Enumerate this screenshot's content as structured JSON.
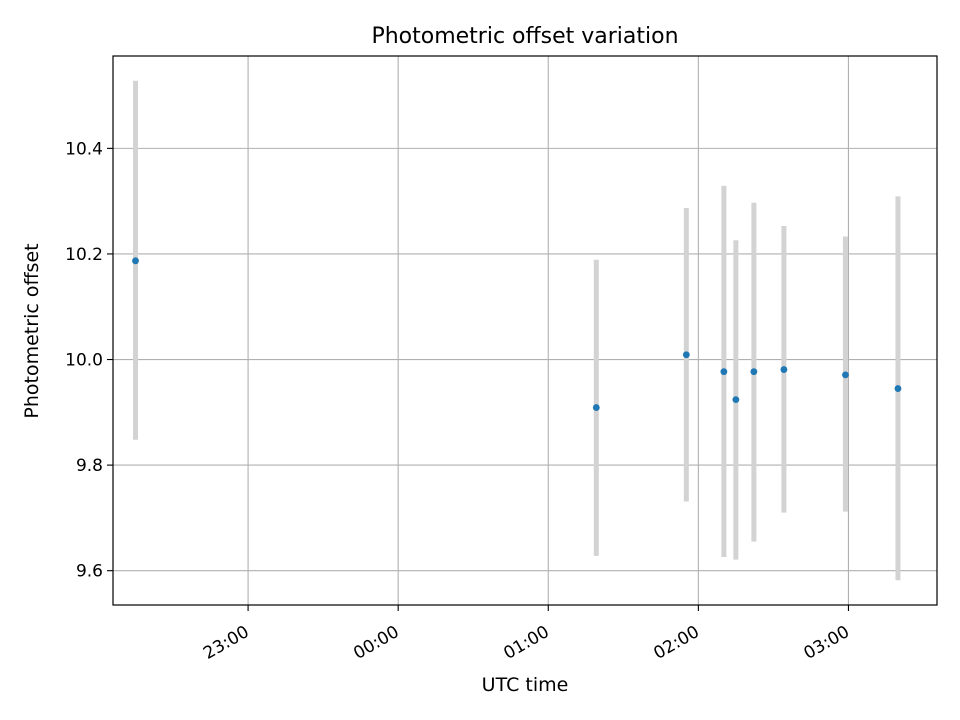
{
  "chart_data": {
    "type": "scatter",
    "title": "Photometric offset variation",
    "xlabel": "UTC time",
    "ylabel": "Photometric offset",
    "x_ticks": [
      "23:00",
      "00:00",
      "01:00",
      "02:00",
      "03:00"
    ],
    "x_tick_hours": [
      23.0,
      24.0,
      25.0,
      26.0,
      27.0
    ],
    "x_range_hours": [
      22.1,
      27.59
    ],
    "y_ticks": [
      "9.6",
      "9.8",
      "10.0",
      "10.2",
      "10.4"
    ],
    "y_tick_values": [
      9.6,
      9.8,
      10.0,
      10.2,
      10.4
    ],
    "ylim": [
      9.535,
      10.575
    ],
    "grid": true,
    "series": [
      {
        "point_color": "#1f77b4",
        "errorbar_color": "#d3d3d3",
        "x": [
          "22:15",
          "01:19",
          "01:55",
          "02:10",
          "02:15",
          "02:22",
          "02:34",
          "02:59",
          "03:20"
        ],
        "x_hours": [
          22.25,
          25.32,
          25.92,
          26.17,
          26.25,
          26.37,
          26.57,
          26.98,
          27.33
        ],
        "y": [
          10.187,
          9.909,
          10.009,
          9.977,
          9.924,
          9.977,
          9.981,
          9.971,
          9.945
        ],
        "y_lower": [
          9.848,
          9.628,
          9.731,
          9.626,
          9.621,
          9.655,
          9.71,
          9.712,
          9.582
        ],
        "y_upper": [
          10.528,
          10.189,
          10.287,
          10.329,
          10.226,
          10.297,
          10.253,
          10.233,
          10.309
        ]
      }
    ]
  }
}
